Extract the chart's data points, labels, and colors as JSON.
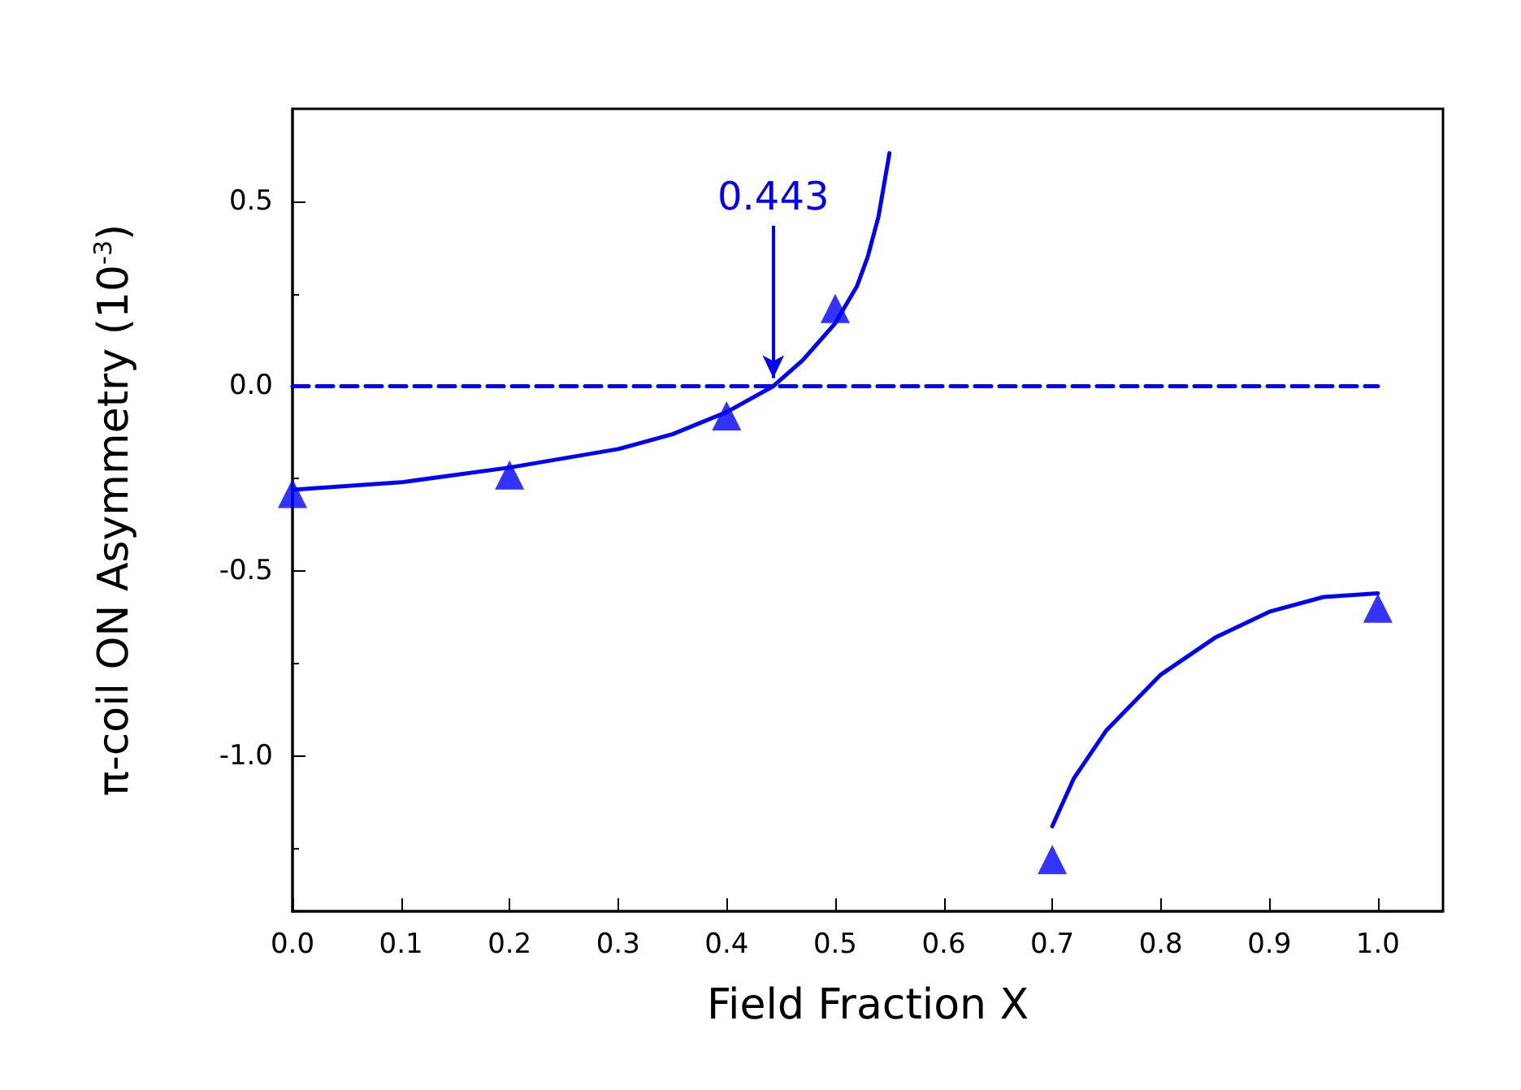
{
  "chart_data": {
    "type": "scatter",
    "xlabel": "Field Fraction X",
    "ylabel": "π-coil ON Asymmetry (10$^{-3}$)",
    "xlim": [
      0,
      1.06
    ],
    "ylim": [
      -1.42,
      0.75
    ],
    "xticks": [
      {
        "value": 0,
        "label": "0.0"
      },
      {
        "value": 0.1,
        "label": "0.1"
      },
      {
        "value": 0.2,
        "label": "0.2"
      },
      {
        "value": 0.3,
        "label": "0.3"
      },
      {
        "value": 0.4,
        "label": "0.4"
      },
      {
        "value": 0.5,
        "label": "0.5"
      },
      {
        "value": 0.6,
        "label": "0.6"
      },
      {
        "value": 0.7,
        "label": "0.7"
      },
      {
        "value": 0.8,
        "label": "0.8"
      },
      {
        "value": 0.9,
        "label": "0.9"
      },
      {
        "value": 1,
        "label": "1.0"
      }
    ],
    "yticks": [
      {
        "value": -1,
        "label": "-1.0"
      },
      {
        "value": -0.5,
        "label": "-0.5"
      },
      {
        "value": 0,
        "label": "0.0"
      },
      {
        "value": 0.5,
        "label": "0.5"
      }
    ],
    "grid": false,
    "series": [
      {
        "marker": "triangle",
        "color": "#0000ff",
        "x": [
          0,
          0.2,
          0.4,
          0.5,
          0.7,
          1.0
        ],
        "values": [
          -0.29,
          -0.24,
          -0.08,
          0.21,
          -1.28,
          -0.6
        ]
      },
      {
        "type": "line",
        "marker": "none",
        "line_style": "solid",
        "color": "#0000ff",
        "x": [
          0,
          0.1,
          0.2,
          0.3,
          0.35,
          0.4,
          0.443,
          0.47,
          0.5,
          0.52,
          0.53,
          0.54,
          0.55
        ],
        "values": [
          -0.28,
          -0.26,
          -0.22,
          -0.17,
          -0.13,
          -0.07,
          0,
          0.07,
          0.17,
          0.27,
          0.35,
          0.46,
          0.63
        ]
      },
      {
        "type": "line",
        "marker": "none",
        "line_style": "solid",
        "color": "#0000ff",
        "x": [
          0.7,
          0.72,
          0.75,
          0.8,
          0.85,
          0.9,
          0.95,
          1.0
        ],
        "values": [
          -1.19,
          -1.06,
          -0.93,
          -0.78,
          -0.68,
          -0.61,
          -0.57,
          -0.56
        ]
      },
      {
        "type": "line",
        "marker": "none",
        "line_style": "dashed",
        "color": "#0000ff",
        "x": [
          0,
          1.0
        ],
        "values": [
          0,
          0
        ]
      }
    ],
    "annotations": [
      {
        "text": "0.443",
        "x": 0.443,
        "y": 0
      }
    ]
  }
}
